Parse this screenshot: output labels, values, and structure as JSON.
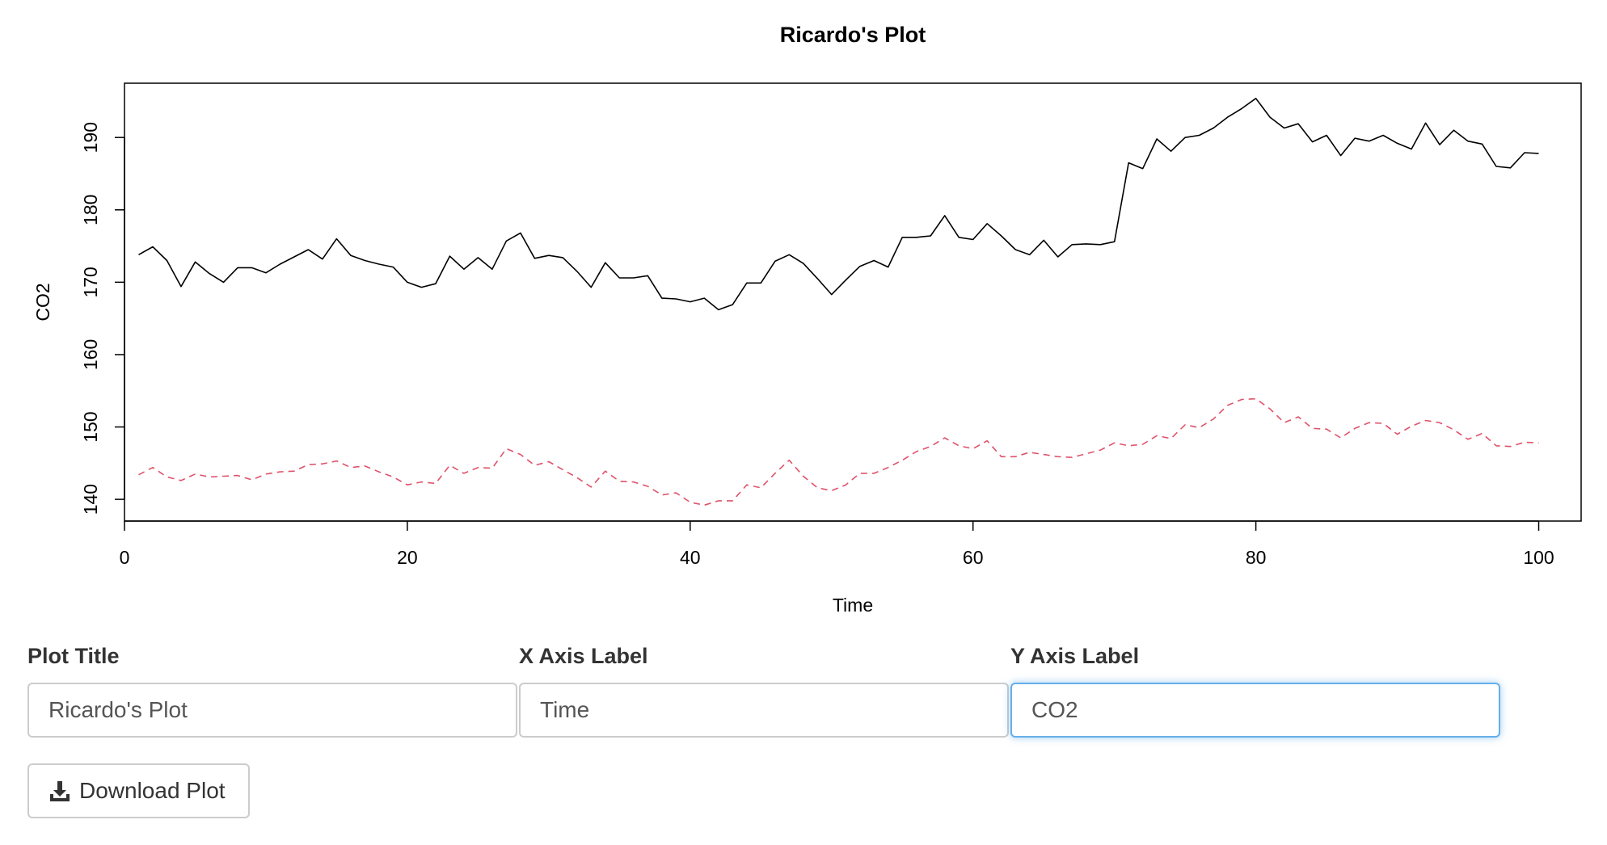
{
  "chart_data": {
    "type": "line",
    "title": "Ricardo's Plot",
    "xlabel": "Time",
    "ylabel": "CO2",
    "xlim": [
      0,
      103
    ],
    "ylim": [
      137,
      197.5
    ],
    "x_ticks": [
      0,
      20,
      40,
      60,
      80,
      100
    ],
    "y_ticks": [
      140,
      150,
      160,
      170,
      180,
      190
    ],
    "grid": false,
    "legend": "none",
    "x": [
      1,
      2,
      3,
      4,
      5,
      6,
      7,
      8,
      9,
      10,
      11,
      12,
      13,
      14,
      15,
      16,
      17,
      18,
      19,
      20,
      21,
      22,
      23,
      24,
      25,
      26,
      27,
      28,
      29,
      30,
      31,
      32,
      33,
      34,
      35,
      36,
      37,
      38,
      39,
      40,
      41,
      42,
      43,
      44,
      45,
      46,
      47,
      48,
      49,
      50,
      51,
      52,
      53,
      54,
      55,
      56,
      57,
      58,
      59,
      60,
      61,
      62,
      63,
      64,
      65,
      66,
      67,
      68,
      69,
      70,
      71,
      72,
      73,
      74,
      75,
      76,
      77,
      78,
      79,
      80,
      81,
      82,
      83,
      84,
      85,
      86,
      87,
      88,
      89,
      90,
      91,
      92,
      93,
      94,
      95,
      96,
      97,
      98,
      99,
      100
    ],
    "series": [
      {
        "color": "#000000",
        "dash": "solid",
        "values": [
          173.8,
          174.9,
          173.0,
          169.4,
          172.8,
          171.2,
          170.0,
          172.0,
          172.0,
          171.3,
          172.5,
          173.5,
          174.5,
          173.2,
          176.0,
          173.7,
          173.0,
          172.5,
          172.1,
          170.0,
          169.3,
          169.8,
          173.6,
          171.8,
          173.4,
          171.8,
          175.7,
          176.8,
          173.3,
          173.7,
          173.4,
          171.5,
          169.3,
          172.7,
          170.6,
          170.6,
          170.9,
          167.8,
          167.7,
          167.3,
          167.8,
          166.2,
          166.9,
          169.9,
          169.9,
          172.9,
          173.8,
          172.6,
          170.5,
          168.3,
          170.3,
          172.2,
          173.0,
          172.1,
          176.2,
          176.2,
          176.4,
          179.2,
          176.2,
          175.9,
          178.1,
          176.4,
          174.5,
          173.8,
          175.8,
          173.5,
          175.2,
          175.3,
          175.2,
          175.6,
          186.5,
          185.7,
          189.8,
          188.1,
          190.0,
          190.3,
          191.3,
          192.8,
          194.0,
          195.4,
          192.8,
          191.3,
          191.9,
          189.4,
          190.3,
          187.5,
          189.9,
          189.5,
          190.3,
          189.2,
          188.4,
          192.0,
          189.0,
          191.0,
          189.5,
          189.1,
          186.0,
          185.8,
          187.9,
          187.8
        ]
      },
      {
        "color": "#DF536B",
        "dash": "dashed",
        "values": [
          143.4,
          144.4,
          143.1,
          142.6,
          143.5,
          143.1,
          143.2,
          143.3,
          142.7,
          143.5,
          143.8,
          143.9,
          144.8,
          144.9,
          145.3,
          144.4,
          144.6,
          143.8,
          143.1,
          142.0,
          142.4,
          142.2,
          144.7,
          143.6,
          144.4,
          144.3,
          147.0,
          146.2,
          144.7,
          145.2,
          144.1,
          143.0,
          141.7,
          143.9,
          142.5,
          142.4,
          141.8,
          140.6,
          140.9,
          139.6,
          139.2,
          139.8,
          139.8,
          142.0,
          141.6,
          143.6,
          145.4,
          143.2,
          141.6,
          141.2,
          142.0,
          143.6,
          143.6,
          144.4,
          145.4,
          146.6,
          147.3,
          148.5,
          147.4,
          147.0,
          148.1,
          145.9,
          145.9,
          146.5,
          146.2,
          145.9,
          145.8,
          146.3,
          146.8,
          147.8,
          147.4,
          147.6,
          148.8,
          148.4,
          150.3,
          149.9,
          151.1,
          153.0,
          153.8,
          153.9,
          152.5,
          150.6,
          151.4,
          149.8,
          149.7,
          148.5,
          149.8,
          150.6,
          150.5,
          149.0,
          150.1,
          150.9,
          150.6,
          149.6,
          148.3,
          149.1,
          147.4,
          147.3,
          147.9,
          147.8
        ]
      }
    ]
  },
  "controls": {
    "plot_title_label": "Plot Title",
    "plot_title_value": "Ricardo's Plot",
    "x_axis_label": "X Axis Label",
    "x_axis_value": "Time",
    "y_axis_label": "Y Axis Label",
    "y_axis_value": "CO2",
    "download_label": "Download Plot",
    "download_icon": "download-icon"
  }
}
